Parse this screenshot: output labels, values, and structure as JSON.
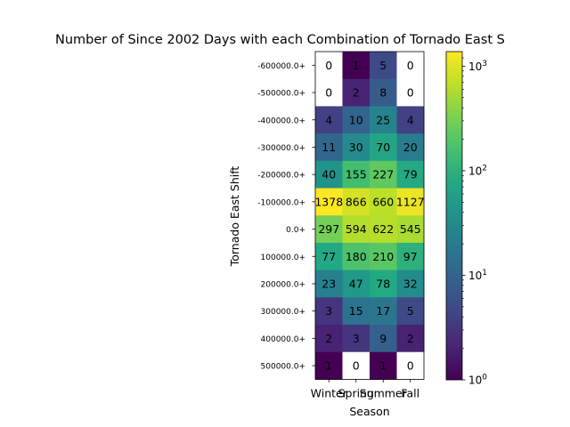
{
  "chart_data": {
    "type": "heatmap",
    "title": "Number of Since 2002 Days with each Combination of Tornado East S",
    "xlabel": "Season",
    "ylabel": "Tornado East Shift",
    "x_categories": [
      "Winter",
      "Spring",
      "Summer",
      "Fall"
    ],
    "y_categories": [
      "-600000.0+",
      "-500000.0+",
      "-400000.0+",
      "-300000.0+",
      "-200000.0+",
      "-100000.0+",
      "0.0+",
      "100000.0+",
      "200000.0+",
      "300000.0+",
      "400000.0+",
      "500000.0+"
    ],
    "values": [
      [
        0,
        1,
        5,
        0
      ],
      [
        0,
        2,
        8,
        0
      ],
      [
        4,
        10,
        25,
        4
      ],
      [
        11,
        30,
        70,
        20
      ],
      [
        40,
        155,
        227,
        79
      ],
      [
        1378,
        866,
        660,
        1127
      ],
      [
        297,
        594,
        622,
        545
      ],
      [
        77,
        180,
        210,
        97
      ],
      [
        23,
        47,
        78,
        32
      ],
      [
        3,
        15,
        17,
        5
      ],
      [
        2,
        3,
        9,
        2
      ],
      [
        1,
        0,
        1,
        0
      ]
    ],
    "colorbar": {
      "scale": "log",
      "range": [
        1,
        1378
      ],
      "ticks": [
        "10^0",
        "10^1",
        "10^2",
        "10^3"
      ],
      "colormap": "viridis"
    }
  }
}
